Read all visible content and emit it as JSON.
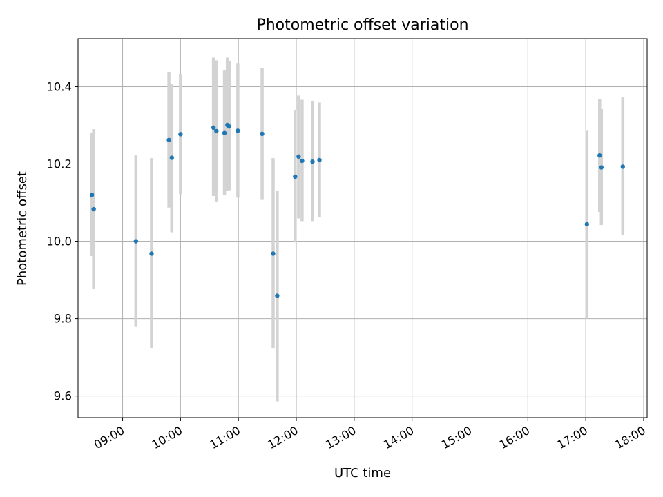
{
  "chart_data": {
    "type": "scatter",
    "title": "Photometric offset variation",
    "xlabel": "UTC time",
    "ylabel": "Photometric offset",
    "x_unit": "hours UTC",
    "xlim": [
      8.23,
      18.06
    ],
    "ylim": [
      9.544,
      10.524
    ],
    "grid": true,
    "x_ticks": [
      {
        "value": 9,
        "label": "09:00"
      },
      {
        "value": 10,
        "label": "10:00"
      },
      {
        "value": 11,
        "label": "11:00"
      },
      {
        "value": 12,
        "label": "12:00"
      },
      {
        "value": 13,
        "label": "13:00"
      },
      {
        "value": 14,
        "label": "14:00"
      },
      {
        "value": 15,
        "label": "15:00"
      },
      {
        "value": 16,
        "label": "16:00"
      },
      {
        "value": 17,
        "label": "17:00"
      },
      {
        "value": 18,
        "label": "18:00"
      }
    ],
    "y_ticks": [
      {
        "value": 9.6,
        "label": "9.6"
      },
      {
        "value": 9.8,
        "label": "9.8"
      },
      {
        "value": 10.0,
        "label": "10.0"
      },
      {
        "value": 10.2,
        "label": "10.2"
      },
      {
        "value": 10.4,
        "label": "10.4"
      }
    ],
    "series": [
      {
        "marker_color": "#1f77b4",
        "errorbar_color": "#d3d3d3",
        "points": [
          {
            "x": 8.47,
            "y": 10.12,
            "ylo": 9.962,
            "yhi": 10.28
          },
          {
            "x": 8.5,
            "y": 10.083,
            "ylo": 9.876,
            "yhi": 10.29
          },
          {
            "x": 9.23,
            "y": 10.0,
            "ylo": 9.78,
            "yhi": 10.222
          },
          {
            "x": 9.5,
            "y": 9.968,
            "ylo": 9.724,
            "yhi": 10.215
          },
          {
            "x": 9.8,
            "y": 10.262,
            "ylo": 10.087,
            "yhi": 10.438
          },
          {
            "x": 9.85,
            "y": 10.216,
            "ylo": 10.023,
            "yhi": 10.408
          },
          {
            "x": 10.0,
            "y": 10.277,
            "ylo": 10.122,
            "yhi": 10.433
          },
          {
            "x": 10.57,
            "y": 10.294,
            "ylo": 10.117,
            "yhi": 10.475
          },
          {
            "x": 10.62,
            "y": 10.285,
            "ylo": 10.103,
            "yhi": 10.468
          },
          {
            "x": 10.76,
            "y": 10.28,
            "ylo": 10.119,
            "yhi": 10.443
          },
          {
            "x": 10.81,
            "y": 10.301,
            "ylo": 10.13,
            "yhi": 10.475
          },
          {
            "x": 10.84,
            "y": 10.297,
            "ylo": 10.132,
            "yhi": 10.466
          },
          {
            "x": 10.99,
            "y": 10.286,
            "ylo": 10.113,
            "yhi": 10.461
          },
          {
            "x": 11.41,
            "y": 10.278,
            "ylo": 10.107,
            "yhi": 10.449
          },
          {
            "x": 11.6,
            "y": 9.968,
            "ylo": 9.724,
            "yhi": 10.215
          },
          {
            "x": 11.67,
            "y": 9.859,
            "ylo": 9.586,
            "yhi": 10.131
          },
          {
            "x": 11.98,
            "y": 10.167,
            "ylo": 9.997,
            "yhi": 10.34
          },
          {
            "x": 12.04,
            "y": 10.219,
            "ylo": 10.059,
            "yhi": 10.377
          },
          {
            "x": 12.1,
            "y": 10.208,
            "ylo": 10.052,
            "yhi": 10.366
          },
          {
            "x": 12.28,
            "y": 10.206,
            "ylo": 10.052,
            "yhi": 10.362
          },
          {
            "x": 12.4,
            "y": 10.21,
            "ylo": 10.062,
            "yhi": 10.359
          },
          {
            "x": 17.02,
            "y": 10.044,
            "ylo": 9.8,
            "yhi": 10.286
          },
          {
            "x": 17.24,
            "y": 10.222,
            "ylo": 10.076,
            "yhi": 10.368
          },
          {
            "x": 17.27,
            "y": 10.191,
            "ylo": 10.042,
            "yhi": 10.342
          },
          {
            "x": 17.64,
            "y": 10.193,
            "ylo": 10.016,
            "yhi": 10.372
          }
        ]
      }
    ]
  }
}
